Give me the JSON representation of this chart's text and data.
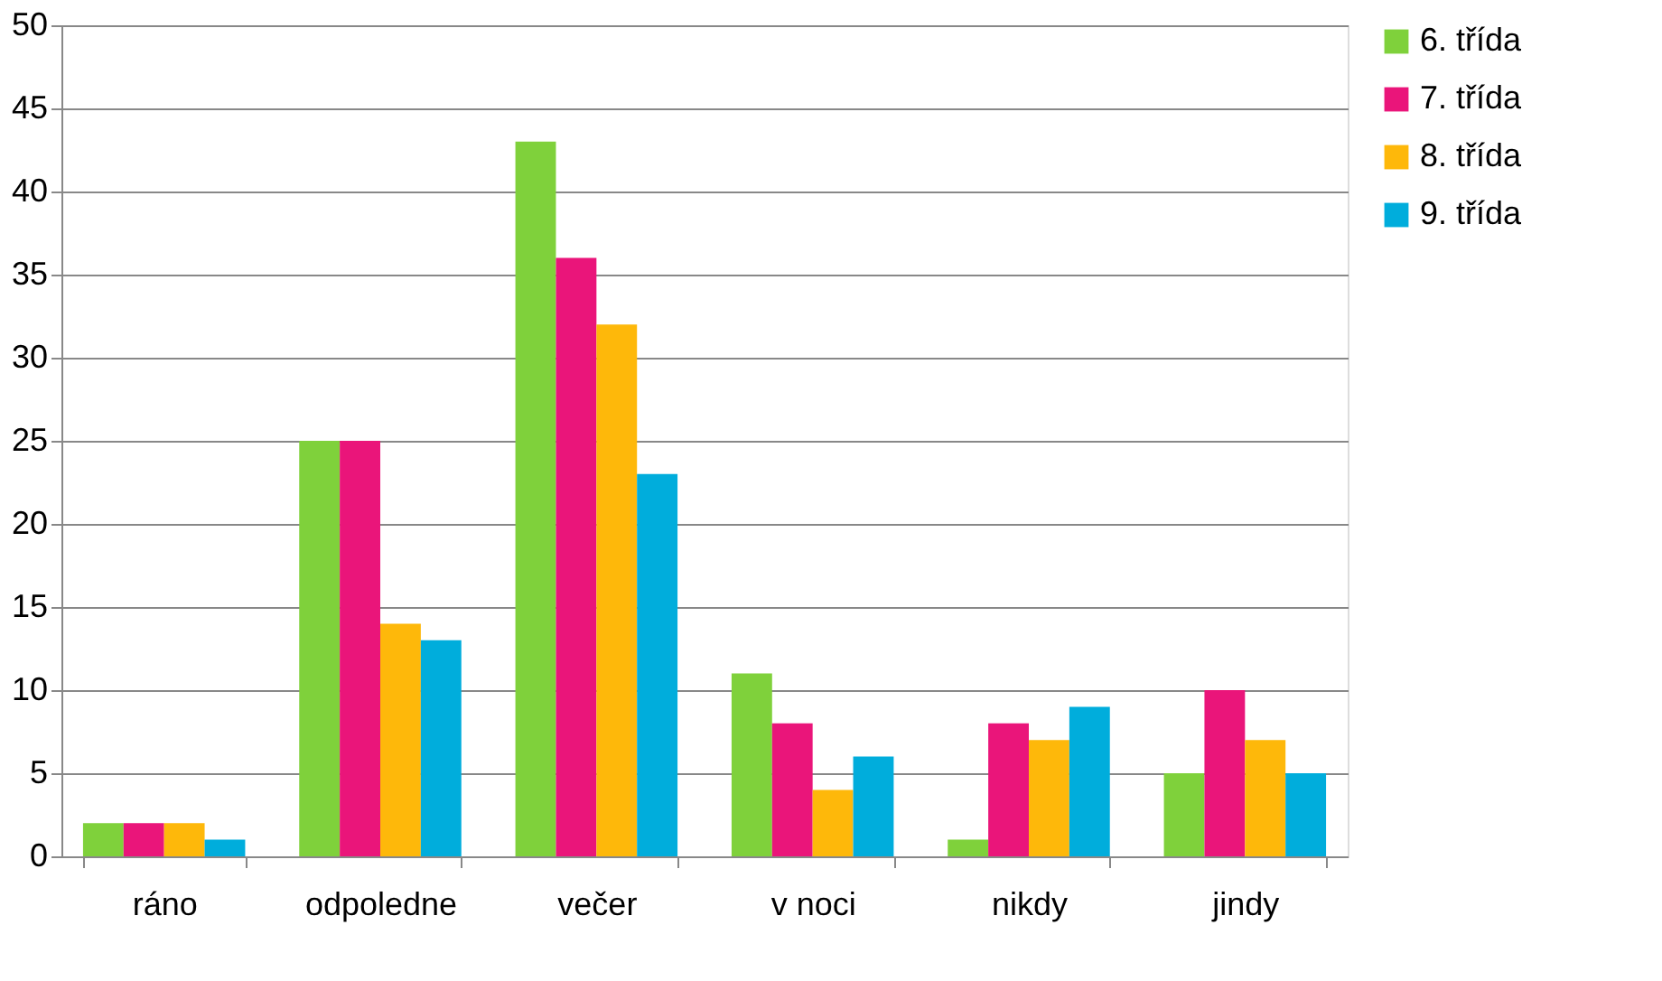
{
  "chart_data": {
    "type": "bar",
    "categories": [
      "ráno",
      "odpoledne",
      "večer",
      "v noci",
      "nikdy",
      "jindy"
    ],
    "series": [
      {
        "name": "6. třída",
        "color": "#7fd13b",
        "values": [
          2,
          25,
          43,
          11,
          1,
          5
        ]
      },
      {
        "name": "7. třída",
        "color": "#ea157a",
        "values": [
          2,
          25,
          36,
          8,
          8,
          10
        ]
      },
      {
        "name": "8. třída",
        "color": "#feb80a",
        "values": [
          2,
          14,
          32,
          4,
          7,
          7
        ]
      },
      {
        "name": "9. třída",
        "color": "#00addc",
        "values": [
          1,
          13,
          23,
          6,
          9,
          5
        ]
      }
    ],
    "ylim": [
      0,
      50
    ],
    "yticks": [
      0,
      5,
      10,
      15,
      20,
      25,
      30,
      35,
      40,
      45,
      50
    ],
    "grid": "y",
    "legend": "right"
  }
}
